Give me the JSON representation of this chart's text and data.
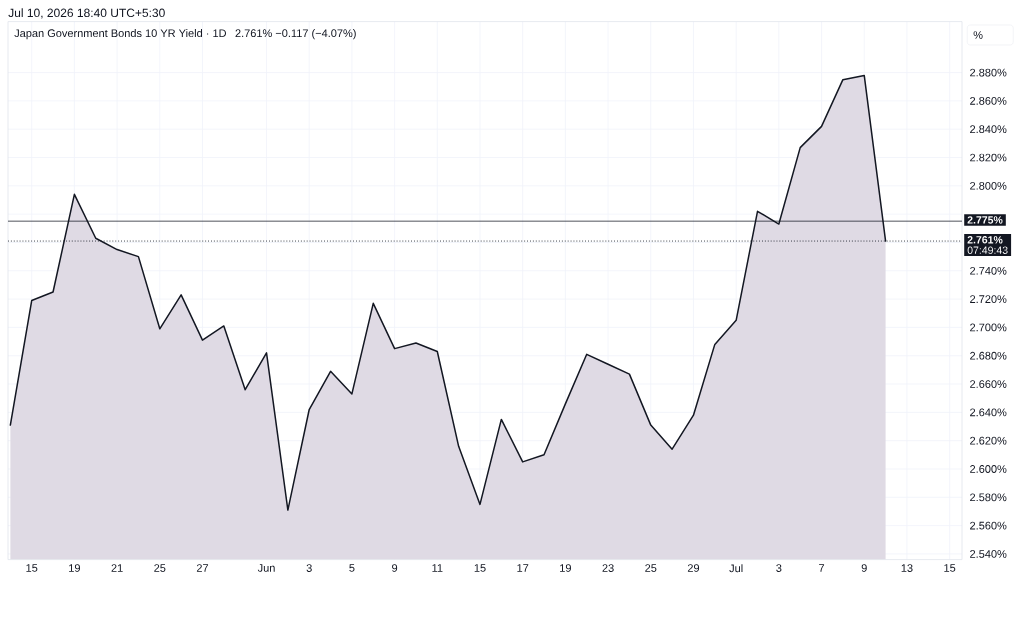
{
  "chart_data": {
    "type": "area",
    "title": "Japan Government Bonds 10 YR Yield · 1D",
    "subtitle": "2.761% −0.117 (−4.07%)",
    "ylabel": "%",
    "annotations": [
      "Jul 10, 2026 18:40 UTC+5:30",
      "07:49:43"
    ],
    "categories": [
      null,
      "15",
      null,
      "19",
      null,
      "21",
      null,
      "25",
      null,
      "27",
      null,
      null,
      "Jun",
      null,
      "3",
      null,
      "5",
      null,
      "9",
      null,
      "11",
      null,
      "15",
      null,
      "17",
      null,
      "19",
      null,
      "23",
      null,
      "25",
      null,
      "29",
      null,
      "Jul",
      null,
      "3",
      null,
      "7",
      null,
      "9",
      null,
      "13",
      null,
      "15"
    ],
    "color": "#131722",
    "values": [
      2.631,
      2.719,
      2.725,
      2.794,
      2.763,
      2.755,
      2.75,
      2.699,
      2.723,
      2.691,
      2.701,
      2.656,
      2.682,
      2.571,
      2.642,
      2.669,
      2.653,
      2.717,
      2.685,
      2.689,
      2.683,
      2.616,
      2.575,
      2.635,
      2.605,
      2.61,
      2.646,
      2.681,
      2.674,
      2.667,
      2.631,
      2.614,
      2.638,
      2.688,
      2.705,
      2.782,
      2.773,
      2.827,
      2.842,
      2.875,
      2.878,
      2.761,
      null,
      null,
      null
    ],
    "ylim": [
      2.536,
      2.916
    ],
    "yticks": [
      {
        "value": 2.54,
        "label": "2.540%"
      },
      {
        "value": 2.56,
        "label": "2.560%"
      },
      {
        "value": 2.58,
        "label": "2.580%"
      },
      {
        "value": 2.6,
        "label": "2.600%"
      },
      {
        "value": 2.62,
        "label": "2.620%"
      },
      {
        "value": 2.64,
        "label": "2.640%"
      },
      {
        "value": 2.66,
        "label": "2.660%"
      },
      {
        "value": 2.68,
        "label": "2.680%"
      },
      {
        "value": 2.7,
        "label": "2.700%"
      },
      {
        "value": 2.72,
        "label": "2.720%"
      },
      {
        "value": 2.74,
        "label": "2.740%"
      },
      {
        "value": 2.76,
        "label": null
      },
      {
        "value": 2.78,
        "label": null
      },
      {
        "value": 2.8,
        "label": "2.800%"
      },
      {
        "value": 2.82,
        "label": "2.820%"
      },
      {
        "value": 2.84,
        "label": "2.840%"
      },
      {
        "value": 2.86,
        "label": "2.860%"
      },
      {
        "value": 2.88,
        "label": "2.880%"
      }
    ],
    "ref_lines": [
      {
        "axis": "y",
        "value": 2.775,
        "label": "2.775%",
        "color": "#131722",
        "line_style": "solid"
      },
      {
        "axis": "y",
        "value": 2.761,
        "label": "2.761%",
        "color": "#131722",
        "line_style": "dotted"
      }
    ],
    "grid": true,
    "line_style": "solid"
  }
}
